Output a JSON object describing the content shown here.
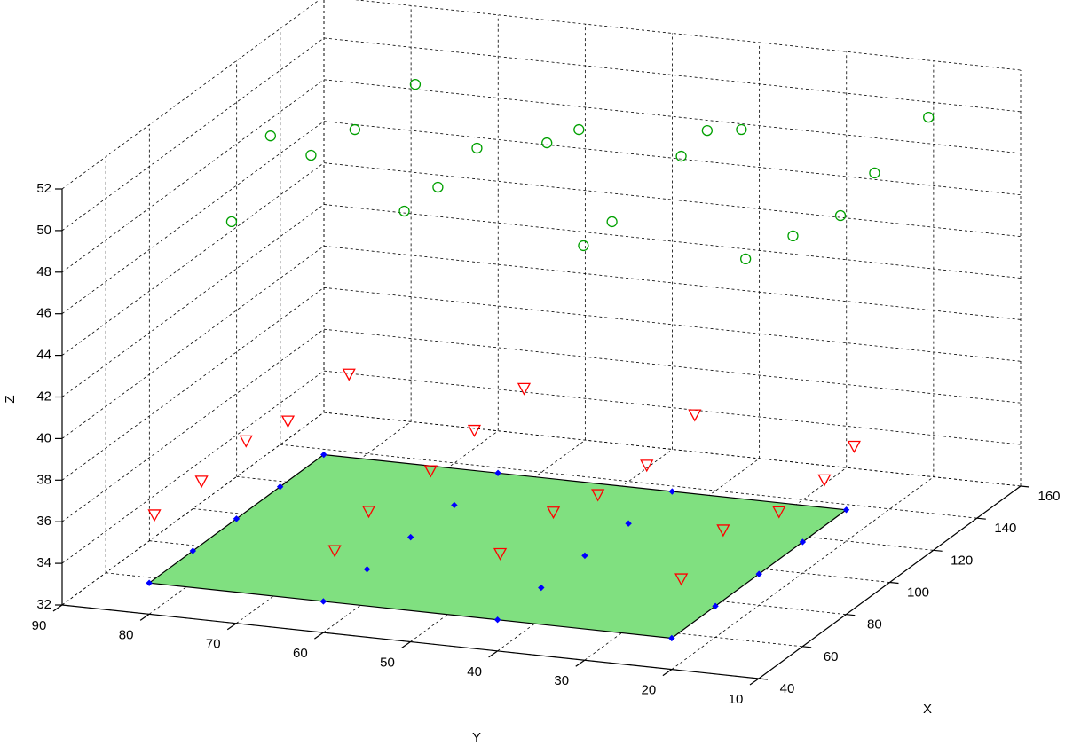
{
  "chart_data": {
    "type": "scatter3d",
    "xlabel": "X",
    "ylabel": "Y",
    "zlabel": "Z",
    "xlim": [
      40,
      160
    ],
    "ylim": [
      10,
      90
    ],
    "zlim": [
      32,
      52
    ],
    "xticks": [
      40,
      60,
      80,
      100,
      120,
      140,
      160
    ],
    "yticks": [
      10,
      20,
      30,
      40,
      50,
      60,
      70,
      80,
      90
    ],
    "zticks": [
      32,
      34,
      36,
      38,
      40,
      42,
      44,
      46,
      48,
      50,
      52
    ],
    "grid": true,
    "surface": {
      "x": [
        40,
        120
      ],
      "y": [
        20,
        80
      ],
      "z": 33.5,
      "color": "#80e080"
    },
    "series": [
      {
        "marker": "circle",
        "color": "#00a000",
        "x": [
          54.6,
          103.6,
          95.4,
          111.9,
          140.0,
          70.3,
          85.3,
          108.8,
          115.7,
          124.8,
          61.8,
          76.5,
          116.2,
          131.7,
          134.2,
          63.9,
          79.2,
          93.0,
          118.2,
          151.7
        ],
        "y": [
          74.2,
          82.0,
          75.3,
          74.4,
          74.5,
          58.3,
          58.2,
          59.6,
          53.3,
          51.9,
          35.6,
          36.0,
          38.0,
          38.9,
          35.6,
          17.5,
          15.9,
          13.9,
          16.3,
          18.5
        ],
        "z": [
          50,
          50,
          50,
          50,
          50,
          50,
          50,
          50,
          50,
          50,
          50,
          50,
          50,
          50,
          50,
          50,
          50,
          50,
          50,
          50
        ]
      },
      {
        "marker": "triangle-down",
        "color": "#ff0000",
        "x": [
          40,
          60,
          80,
          100,
          120,
          40,
          60,
          80,
          100,
          120,
          40,
          60,
          80,
          100,
          120,
          40,
          60,
          80,
          100,
          120
        ],
        "y": [
          79.4,
          79.0,
          78.9,
          79.1,
          77.1,
          58.7,
          59.8,
          57.7,
          57.7,
          57.0,
          39.7,
          38.6,
          38.5,
          37.9,
          37.4,
          18.9,
          19.1,
          17.7,
          17.5,
          19.1
        ],
        "z": [
          36.8,
          36.9,
          37.3,
          36.7,
          37.5,
          36.0,
          36.3,
          36.8,
          37.2,
          37.7,
          36.7,
          37.2,
          36.5,
          36.4,
          37.3,
          36.4,
          37.2,
          36.6,
          36.6,
          36.6
        ]
      },
      {
        "marker": "dot",
        "color": "#0000ff",
        "x": [
          40,
          40,
          40,
          40,
          60,
          60,
          60,
          60,
          80,
          80,
          80,
          80,
          100,
          100,
          100,
          100,
          120,
          120,
          120,
          120
        ],
        "y": [
          80,
          60,
          40,
          20,
          80,
          60,
          40,
          20,
          80,
          60,
          40,
          20,
          80,
          60,
          40,
          20,
          80,
          60,
          40,
          20
        ],
        "z": [
          33.5,
          33.5,
          33.5,
          33.5,
          33.5,
          33.5,
          33.5,
          33.5,
          33.5,
          33.5,
          33.5,
          33.5,
          33.5,
          33.5,
          33.5,
          33.5,
          33.5,
          33.5,
          33.5,
          33.5
        ]
      }
    ]
  }
}
